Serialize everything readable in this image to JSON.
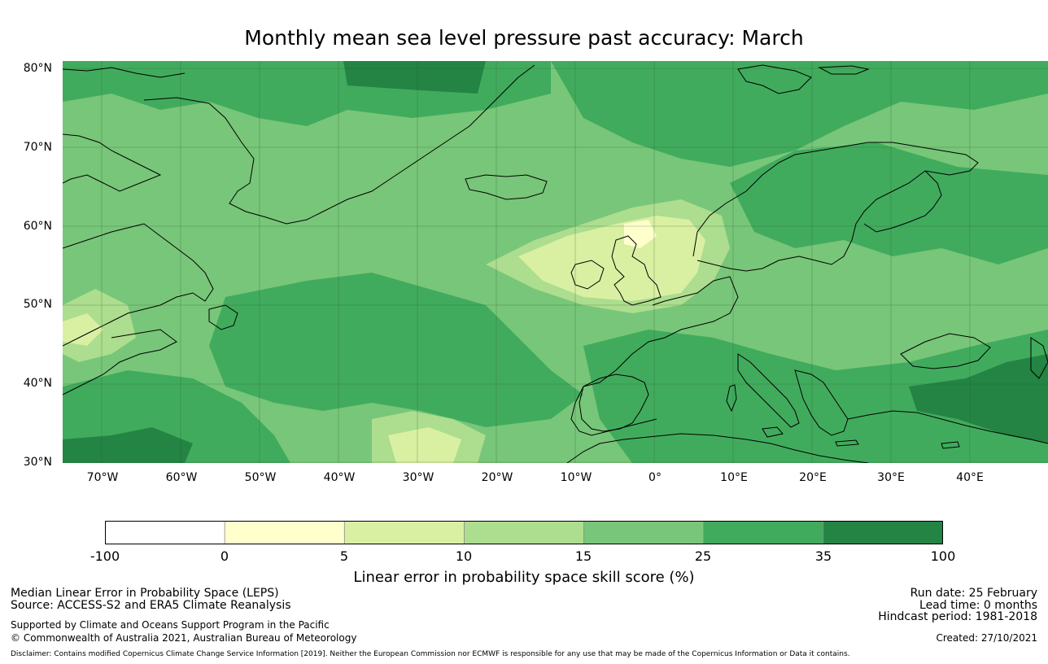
{
  "title": "Monthly mean sea level pressure past accuracy: March",
  "map": {
    "lat_labels": [
      "80°N",
      "70°N",
      "60°N",
      "50°N",
      "40°N",
      "30°N"
    ],
    "lon_labels": [
      "70°W",
      "60°W",
      "50°W",
      "40°W",
      "30°W",
      "20°W",
      "10°W",
      "0°",
      "10°E",
      "20°E",
      "30°E",
      "40°E"
    ],
    "extent": {
      "lon_min": -75,
      "lon_max": 50,
      "lat_min": 30,
      "lat_max": 81
    },
    "colors": {
      "class_0_5": "#ffffcc",
      "class_5_10": "#d9f0a3",
      "class_10_15": "#addd8e",
      "class_15_25": "#78c679",
      "class_25_35": "#41ab5d",
      "class_35_100": "#238443",
      "coastline": "#000000"
    }
  },
  "colorbar": {
    "ticks": [
      "-100",
      "0",
      "5",
      "10",
      "15",
      "25",
      "35",
      "100"
    ],
    "colors": [
      "#ffffff",
      "#ffffcc",
      "#d9f0a3",
      "#addd8e",
      "#78c679",
      "#41ab5d",
      "#238443"
    ],
    "label": "Linear error in probability space skill score (%)"
  },
  "footer": {
    "left_line1": "Median Linear Error in Probability Space (LEPS)",
    "left_line2": "Source: ACCESS-S2 and ERA5 Climate Reanalysis",
    "left_line3": "Supported by Climate and Oceans Support Program in the Pacific",
    "left_line4": "© Commonwealth of Australia 2021, Australian Bureau of Meteorology",
    "right_line1": "Run date: 25 February",
    "right_line2": "Lead time: 0 months",
    "right_line3": "Hindcast period: 1981-2018",
    "right_line4": "Created: 27/10/2021",
    "disclaimer": "Disclaimer: Contains modified Copernicus Climate Change Service Information [2019]. Neither the European Commission nor ECMWF is responsible for any use that may be made of the Copernicus Information or Data it contains."
  }
}
